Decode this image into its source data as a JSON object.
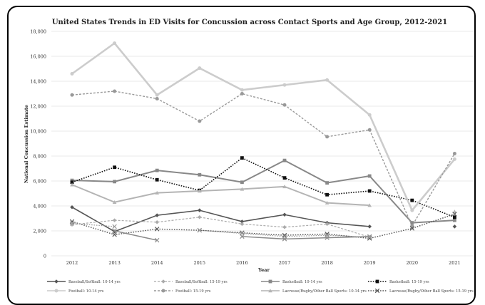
{
  "chart_data": {
    "type": "line",
    "title": "United States Trends in ED Visits for Concussion across Contact Sports and Age Group, 2012-2021",
    "xlabel": "Year",
    "ylabel": "National Concussion Estimate",
    "categories": [
      "2012",
      "2013",
      "2014",
      "2015",
      "2016",
      "2017",
      "2018",
      "2019",
      "2020",
      "2021"
    ],
    "y_ticks": [
      "0",
      "2,000",
      "4,000",
      "6,000",
      "8,000",
      "10,000",
      "12,000",
      "14,000",
      "16,000",
      "18,000"
    ],
    "ylim": [
      0,
      18000
    ],
    "grid": true,
    "legend_position": "bottom",
    "series": [
      {
        "name": "Baseball/Softball: 10-14 yrs",
        "color": "#555555",
        "dash": "solid",
        "marker": "diamond",
        "width": 1.6,
        "values": [
          3900,
          1950,
          3250,
          3650,
          2750,
          3300,
          2650,
          2350,
          null,
          2350
        ]
      },
      {
        "name": "Baseball/Softball: 15-19 yrs",
        "color": "#aaaaaa",
        "dash": "dash",
        "marker": "diamond",
        "width": 1.2,
        "values": [
          2500,
          2850,
          2700,
          3100,
          2550,
          2300,
          2550,
          1500,
          null,
          null
        ]
      },
      {
        "name": "Basketball: 10-14 yrs",
        "color": "#888888",
        "dash": "solid",
        "marker": "square",
        "width": 2.0,
        "values": [
          6050,
          5950,
          6850,
          6500,
          5900,
          7650,
          5850,
          6400,
          2650,
          2850
        ]
      },
      {
        "name": "Basketball: 15-19 yrs",
        "color": "#111111",
        "dash": "dot",
        "marker": "square",
        "width": 1.6,
        "values": [
          5900,
          7100,
          6100,
          5250,
          7850,
          6250,
          4900,
          5200,
          4450,
          3100
        ]
      },
      {
        "name": "Football: 10-14 yrs",
        "color": "#cccccc",
        "dash": "solid",
        "marker": "circle",
        "width": 2.6,
        "values": [
          14600,
          17050,
          12900,
          15050,
          13300,
          13700,
          14100,
          11300,
          3650,
          7750
        ]
      },
      {
        "name": "Football: 15-19 yrs",
        "color": "#999999",
        "dash": "dash",
        "marker": "circle",
        "width": 1.4,
        "values": [
          12900,
          13200,
          12600,
          10800,
          13000,
          12100,
          9550,
          10100,
          2400,
          8200
        ]
      },
      {
        "name": "Lacrosse/Rugby/Other Ball Sports: 10-14 yrs",
        "color": "#b4b4b4",
        "dash": "solid",
        "marker": "triangle",
        "width": 2.0,
        "values": [
          5700,
          4300,
          5050,
          5200,
          5350,
          5550,
          4250,
          4050,
          null,
          3550
        ]
      },
      {
        "name": "Lacrosse/Rugby/Other Ball Sports: 15-19 yrs",
        "color": "#555555",
        "dash": "dot",
        "marker": "x",
        "width": 1.4,
        "values": [
          2750,
          1700,
          2150,
          2050,
          1850,
          1650,
          1750,
          1400,
          2200,
          3350
        ]
      },
      {
        "name": "",
        "color": "#8a8a8a",
        "dash": "solid",
        "marker": "x",
        "width": 1.6,
        "values": [
          null,
          2000,
          1250,
          null,
          1550,
          1350,
          1450,
          1550,
          null,
          null
        ]
      },
      {
        "name": "",
        "color": "#9a9a9a",
        "dash": "dot",
        "marker": "x",
        "width": 1.2,
        "values": [
          2600,
          2350,
          null,
          2050,
          1800,
          1550,
          1650,
          1500,
          null,
          null
        ]
      }
    ]
  }
}
